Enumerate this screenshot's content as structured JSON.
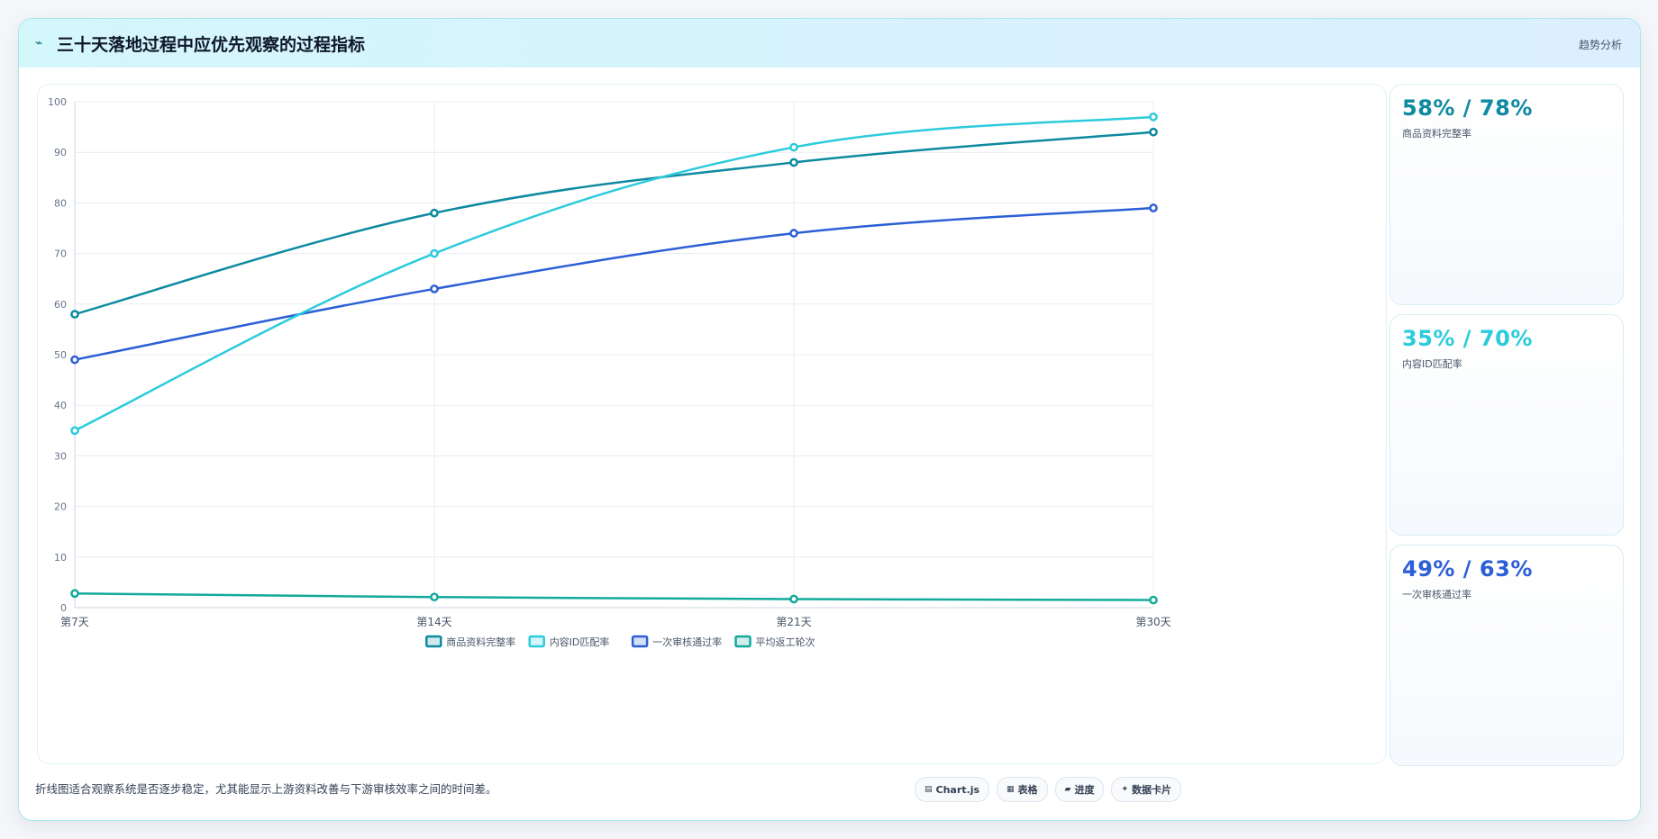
{
  "header": {
    "title": "三十天落地过程中应优先观察的过程指标",
    "title_icon": "pin-icon",
    "trend_link": "趋势分析"
  },
  "chart_data": {
    "type": "line",
    "x": [
      "第7天",
      "第14天",
      "第21天",
      "第30天"
    ],
    "ylim": [
      0,
      100
    ],
    "yticks": [
      0,
      10,
      20,
      30,
      40,
      50,
      60,
      70,
      80,
      90,
      100
    ],
    "grid": true,
    "legend_position": "bottom",
    "series": [
      {
        "name": "商品资料完整率",
        "color": "#0d8aa0",
        "values": [
          58,
          78,
          88,
          94
        ]
      },
      {
        "name": "内容ID匹配率",
        "color": "#2ccbdc",
        "values": [
          35,
          70,
          91,
          97
        ]
      },
      {
        "name": "一次审核通过率",
        "color": "#2c5fd6",
        "values": [
          49,
          63,
          74,
          79
        ]
      },
      {
        "name": "平均返工轮次",
        "color": "#13aa9c",
        "values": [
          2.8,
          2.1,
          1.7,
          1.5
        ]
      }
    ]
  },
  "stats": [
    {
      "value": "58% / 78%",
      "label": "商品资料完整率",
      "color": "#0d8aa0"
    },
    {
      "value": "35% / 70%",
      "label": "内容ID匹配率",
      "color": "#2ccbdc"
    },
    {
      "value": "49% / 63%",
      "label": "一次审核通过率",
      "color": "#2c5fd6"
    }
  ],
  "footer": {
    "note": "折线图适合观察系统是否逐步稳定，尤其能显示上游资料改善与下游审核效率之间的时间差。",
    "tags": [
      {
        "icon": "▤",
        "label": "Chart.js",
        "icon_name": "chart-icon"
      },
      {
        "icon": "▦",
        "label": "表格",
        "icon_name": "table-icon"
      },
      {
        "icon": "▰",
        "label": "进度",
        "icon_name": "progress-icon"
      },
      {
        "icon": "✦",
        "label": "数据卡片",
        "icon_name": "card-icon"
      }
    ]
  }
}
